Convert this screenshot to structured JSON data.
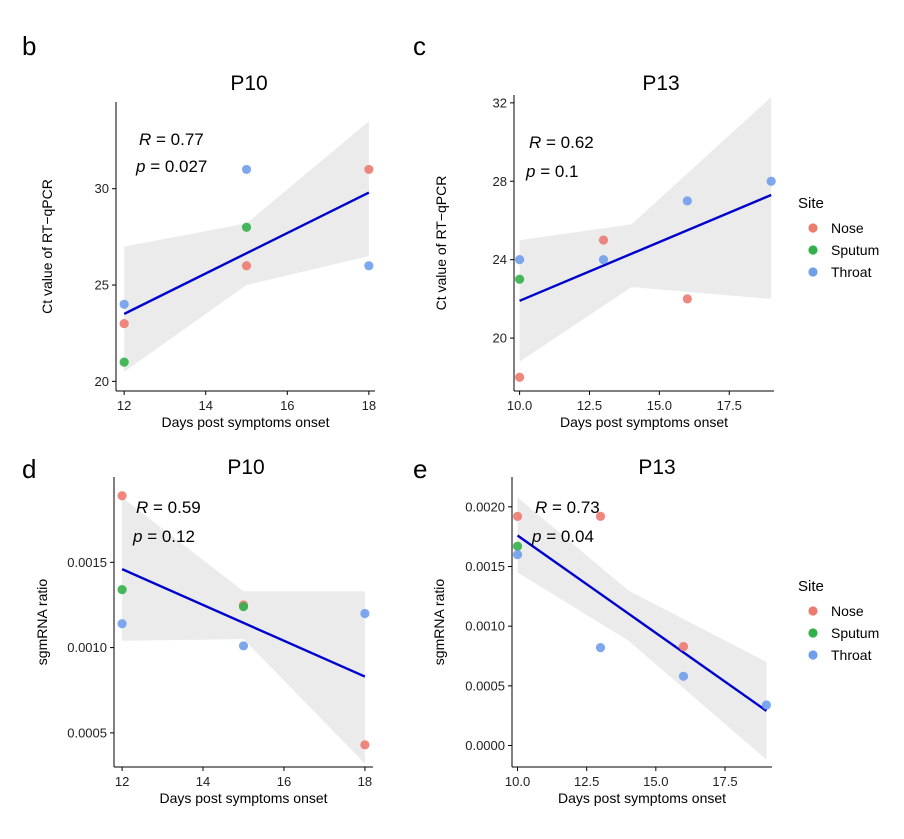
{
  "legend": {
    "title": "Site",
    "items": [
      {
        "label": "Nose",
        "color": "#EC7B70"
      },
      {
        "label": "Sputum",
        "color": "#33B04A"
      },
      {
        "label": "Throat",
        "color": "#6F9FEC"
      }
    ]
  },
  "colors": {
    "fit_line": "#0000CC",
    "ci_band": "#EBEBEB"
  },
  "chart_data": [
    {
      "panel": "b",
      "type": "scatter",
      "title": "P10",
      "xlabel": "Days post symptoms onset",
      "ylabel": "Ct value of RT−qPCR",
      "xlim": [
        11.8,
        18.15
      ],
      "ylim": [
        19.5,
        34.5
      ],
      "xticks": [
        12,
        14,
        16,
        18
      ],
      "yticks": [
        20,
        25,
        30
      ],
      "xtick_labels": [
        "12",
        "14",
        "16",
        "18"
      ],
      "ytick_labels": [
        "20",
        "25",
        "30"
      ],
      "stats": {
        "r_label": "R",
        "r_value": "= 0.77",
        "p_label": "p",
        "p_value": "= 0.027"
      },
      "fit": {
        "x": [
          12,
          18
        ],
        "y": [
          23.5,
          29.8
        ]
      },
      "ci_band": {
        "x": [
          12,
          15,
          18
        ],
        "lower": [
          20.5,
          25.0,
          26.5
        ],
        "upper": [
          27.0,
          28.2,
          33.5
        ]
      },
      "points": [
        {
          "site": "Nose",
          "x": 12,
          "y": 23
        },
        {
          "site": "Sputum",
          "x": 12,
          "y": 21
        },
        {
          "site": "Throat",
          "x": 12,
          "y": 24
        },
        {
          "site": "Nose",
          "x": 15,
          "y": 26
        },
        {
          "site": "Sputum",
          "x": 15,
          "y": 28
        },
        {
          "site": "Throat",
          "x": 15,
          "y": 31
        },
        {
          "site": "Nose",
          "x": 18,
          "y": 31
        },
        {
          "site": "Throat",
          "x": 18,
          "y": 26
        }
      ]
    },
    {
      "panel": "c",
      "type": "scatter",
      "title": "P13",
      "xlabel": "Days post symptoms onset",
      "ylabel": "Ct value of RT−qPCR",
      "xlim": [
        9.8,
        19.1
      ],
      "ylim": [
        17.3,
        32.4
      ],
      "xticks": [
        10,
        12.5,
        15,
        17.5
      ],
      "yticks": [
        20,
        24,
        28,
        32
      ],
      "xtick_labels": [
        "10.0",
        "12.5",
        "15.0",
        "17.5"
      ],
      "ytick_labels": [
        "20",
        "24",
        "28",
        "32"
      ],
      "stats": {
        "r_label": "R",
        "r_value": "= 0.62",
        "p_label": "p",
        "p_value": "= 0.1"
      },
      "fit": {
        "x": [
          10,
          19
        ],
        "y": [
          21.9,
          27.3
        ]
      },
      "ci_band": {
        "x": [
          10,
          14,
          19
        ],
        "lower": [
          18.8,
          22.6,
          22.0
        ],
        "upper": [
          25.0,
          25.8,
          32.3
        ]
      },
      "points": [
        {
          "site": "Nose",
          "x": 10,
          "y": 18
        },
        {
          "site": "Sputum",
          "x": 10,
          "y": 23
        },
        {
          "site": "Throat",
          "x": 10,
          "y": 24
        },
        {
          "site": "Nose",
          "x": 13,
          "y": 25
        },
        {
          "site": "Throat",
          "x": 13,
          "y": 24
        },
        {
          "site": "Nose",
          "x": 16,
          "y": 22
        },
        {
          "site": "Throat",
          "x": 16,
          "y": 27
        },
        {
          "site": "Throat",
          "x": 19,
          "y": 28
        }
      ]
    },
    {
      "panel": "d",
      "type": "scatter",
      "title": "P10",
      "xlabel": "Days post symptoms onset",
      "ylabel": "sgmRNA ratio",
      "xlim": [
        11.8,
        18.2
      ],
      "ylim": [
        0.0003,
        0.002
      ],
      "xticks": [
        12,
        14,
        16,
        18
      ],
      "yticks": [
        0.0005,
        0.001,
        0.0015
      ],
      "xtick_labels": [
        "12",
        "14",
        "16",
        "18"
      ],
      "ytick_labels": [
        "0.0005",
        "0.0010",
        "0.0015"
      ],
      "stats": {
        "r_label": "R",
        "r_value": "=  0.59",
        "p_label": "p",
        "p_value": "= 0.12"
      },
      "fit": {
        "x": [
          12,
          18
        ],
        "y": [
          0.00146,
          0.00083
        ]
      },
      "ci_band": {
        "x": [
          12,
          15,
          18
        ],
        "lower": [
          0.00104,
          0.00105,
          0.00032
        ],
        "upper": [
          0.00188,
          0.00133,
          0.00133
        ]
      },
      "points": [
        {
          "site": "Nose",
          "x": 12,
          "y": 0.00189
        },
        {
          "site": "Sputum",
          "x": 12,
          "y": 0.00134
        },
        {
          "site": "Throat",
          "x": 12,
          "y": 0.00114
        },
        {
          "site": "Nose",
          "x": 15,
          "y": 0.00125
        },
        {
          "site": "Sputum",
          "x": 15,
          "y": 0.00124
        },
        {
          "site": "Throat",
          "x": 15,
          "y": 0.00101
        },
        {
          "site": "Nose",
          "x": 18,
          "y": 0.00043
        },
        {
          "site": "Throat",
          "x": 18,
          "y": 0.0012
        }
      ]
    },
    {
      "panel": "e",
      "type": "scatter",
      "title": "P13",
      "xlabel": "Days post symptoms onset",
      "ylabel": "sgmRNA ratio",
      "xlim": [
        9.8,
        19.2
      ],
      "ylim": [
        -0.00018,
        0.00225
      ],
      "xticks": [
        10,
        12.5,
        15,
        17.5
      ],
      "yticks": [
        0,
        0.0005,
        0.001,
        0.0015,
        0.002
      ],
      "xtick_labels": [
        "10.0",
        "12.5",
        "15.0",
        "17.5"
      ],
      "ytick_labels": [
        "0.0000",
        "0.0005",
        "0.0010",
        "0.0015",
        "0.0020"
      ],
      "stats": {
        "r_label": "R",
        "r_value": "=  0.73",
        "p_label": "p",
        "p_value": "= 0.04"
      },
      "fit": {
        "x": [
          10,
          19
        ],
        "y": [
          0.00176,
          0.00029
        ]
      },
      "ci_band": {
        "x": [
          10,
          14,
          19
        ],
        "lower": [
          0.00145,
          0.00088,
          -0.00012
        ],
        "upper": [
          0.00208,
          0.0013,
          0.0007
        ]
      },
      "points": [
        {
          "site": "Nose",
          "x": 10,
          "y": 0.00192
        },
        {
          "site": "Sputum",
          "x": 10,
          "y": 0.00167
        },
        {
          "site": "Throat",
          "x": 10,
          "y": 0.0016
        },
        {
          "site": "Nose",
          "x": 13,
          "y": 0.00192
        },
        {
          "site": "Throat",
          "x": 13,
          "y": 0.00082
        },
        {
          "site": "Nose",
          "x": 16,
          "y": 0.00083
        },
        {
          "site": "Throat",
          "x": 16,
          "y": 0.00058
        },
        {
          "site": "Throat",
          "x": 19,
          "y": 0.00034
        }
      ]
    }
  ]
}
